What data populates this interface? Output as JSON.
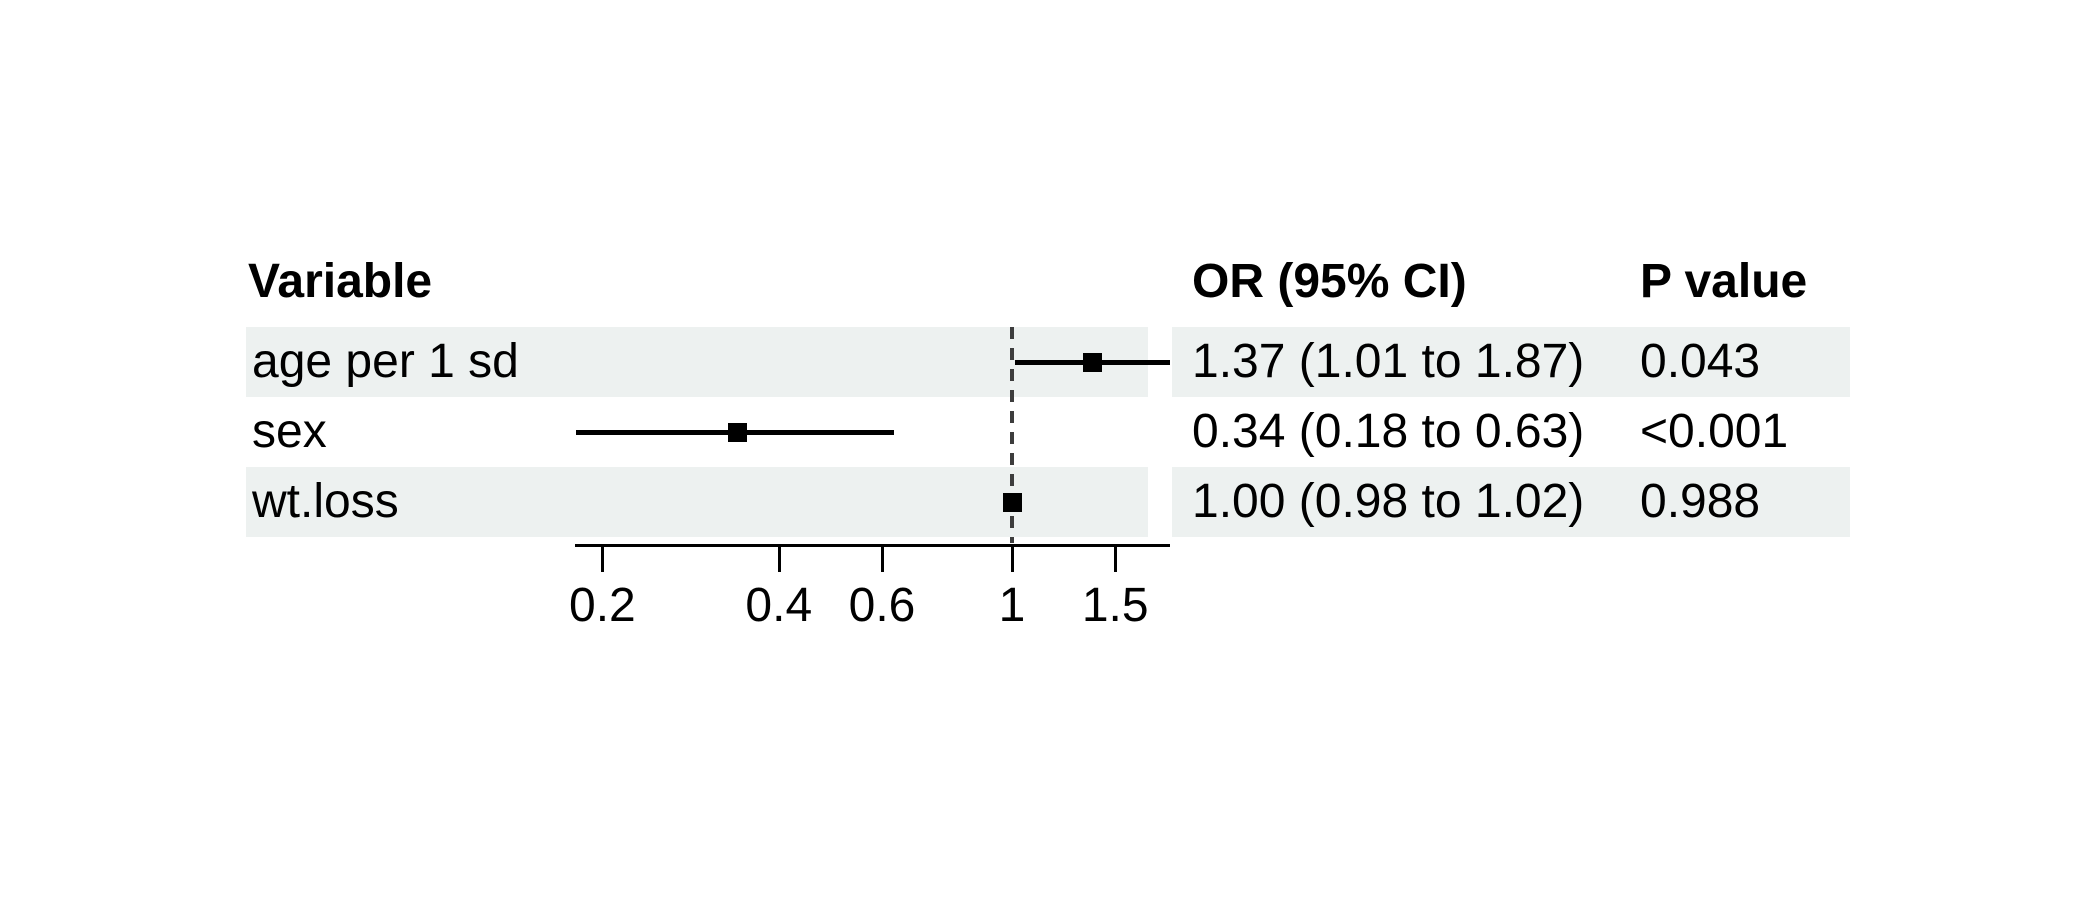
{
  "table": {
    "columns": [
      {
        "key": "variable",
        "label": "Variable"
      },
      {
        "key": "or_ci",
        "label": "OR (95% CI)"
      },
      {
        "key": "p",
        "label": "P value"
      }
    ],
    "rows": [
      {
        "variable": "age per 1 sd",
        "or_ci": "1.37 (1.01 to 1.87)",
        "p": "0.043",
        "shaded": true
      },
      {
        "variable": "sex",
        "or_ci": "0.34 (0.18 to 0.63)",
        "p": "<0.001",
        "shaded": false
      },
      {
        "variable": "wt.loss",
        "or_ci": "1.00 (0.98 to 1.02)",
        "p": "0.988",
        "shaded": true
      }
    ]
  },
  "chart_data": {
    "type": "forest",
    "x_scale": "log10",
    "reference_line": 1,
    "xlim": [
      0.18,
      1.87
    ],
    "x_ticks": [
      {
        "value": 0.2,
        "label": "0.2"
      },
      {
        "value": 0.4,
        "label": "0.4"
      },
      {
        "value": 0.6,
        "label": "0.6"
      },
      {
        "value": 1,
        "label": "1"
      },
      {
        "value": 1.5,
        "label": "1.5"
      }
    ],
    "series": [
      {
        "label": "age per 1 sd",
        "or": 1.37,
        "ci_low": 1.01,
        "ci_high": 1.87,
        "p_value": "0.043"
      },
      {
        "label": "sex",
        "or": 0.34,
        "ci_low": 0.18,
        "ci_high": 0.63,
        "p_value": "<0.001"
      },
      {
        "label": "wt.loss",
        "or": 1.0,
        "ci_low": 0.98,
        "ci_high": 1.02,
        "p_value": "0.988"
      }
    ],
    "legend": "none",
    "grid": "off"
  },
  "colors": {
    "row_shade": "#edf1f0",
    "marker": "#000000",
    "ci_line": "#000000",
    "reference_line": "#3d3d3d",
    "axis": "#000000",
    "text": "#000000",
    "background": "#ffffff"
  }
}
